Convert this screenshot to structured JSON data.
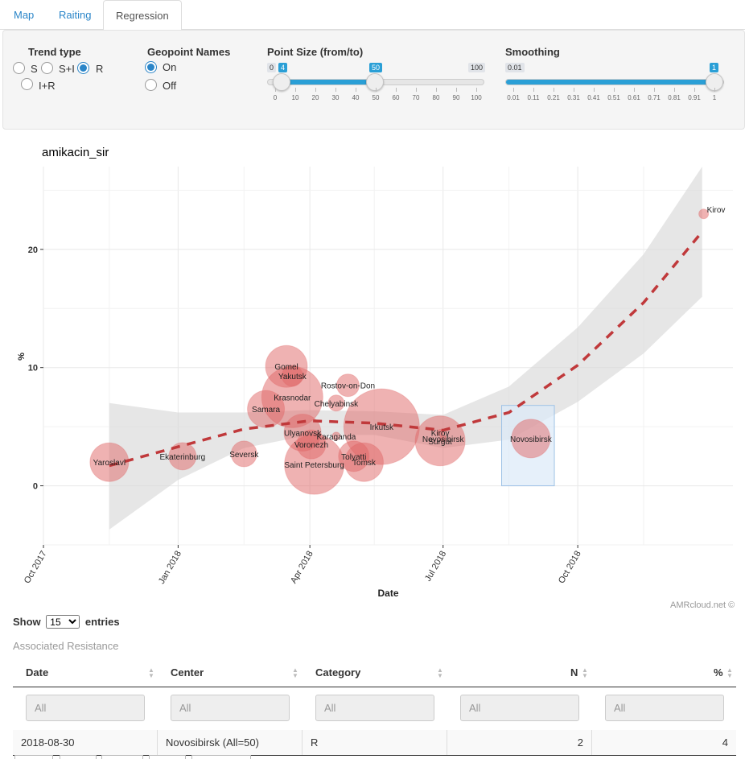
{
  "tabs": [
    {
      "label": "Map",
      "active": false
    },
    {
      "label": "Raiting",
      "active": false
    },
    {
      "label": "Regression",
      "active": true
    }
  ],
  "controls": {
    "trend_type": {
      "title": "Trend type",
      "options": [
        {
          "label": "S",
          "checked": false
        },
        {
          "label": "S+I",
          "checked": false
        },
        {
          "label": "R",
          "checked": true
        },
        {
          "label": "I+R",
          "checked": false
        }
      ]
    },
    "geopoint_names": {
      "title": "Geopoint Names",
      "options": [
        {
          "label": "On",
          "checked": true
        },
        {
          "label": "Off",
          "checked": false
        }
      ]
    },
    "point_size": {
      "title": "Point Size (from/to)",
      "min": 0,
      "max": 100,
      "from": 4,
      "to": 50,
      "min_label": "0",
      "max_label": "100",
      "from_label": "4",
      "to_label": "50",
      "ticks": [
        "0",
        "10",
        "20",
        "30",
        "40",
        "50",
        "60",
        "70",
        "80",
        "90",
        "100"
      ]
    },
    "smoothing": {
      "title": "Smoothing",
      "min": 0.01,
      "max": 1,
      "value": 1,
      "min_label": "0.01",
      "value_label": "1",
      "ticks": [
        "0.01",
        "0.11",
        "0.21",
        "0.31",
        "0.41",
        "0.51",
        "0.61",
        "0.71",
        "0.81",
        "0.91",
        "1"
      ]
    }
  },
  "chart_data": {
    "type": "scatter",
    "title": "amikacin_sir",
    "xlabel": "Date",
    "ylabel": "%",
    "x_ticks": [
      "Oct 2017",
      "Jan 2018",
      "Apr 2018",
      "Jul 2018",
      "Oct 2018"
    ],
    "y_ticks": [
      "0",
      "10",
      "20"
    ],
    "ylim": [
      -5,
      27
    ],
    "grid": true,
    "trend": {
      "color": "#c0393b",
      "style": "dashed",
      "x": [
        "2017-11-15",
        "2018-01-01",
        "2018-02-15",
        "2018-04-01",
        "2018-05-15",
        "2018-07-01",
        "2018-08-15",
        "2018-10-01",
        "2018-11-15",
        "2018-12-25"
      ],
      "y": [
        1.7,
        3.3,
        4.8,
        5.5,
        5.3,
        4.7,
        6.2,
        10.2,
        15.5,
        21.5
      ],
      "ci_upper": [
        7.0,
        6.2,
        6.2,
        6.4,
        6.3,
        6.0,
        8.4,
        13.4,
        19.6,
        27.0
      ],
      "ci_lower": [
        -3.7,
        0.5,
        3.2,
        4.3,
        4.3,
        3.2,
        3.9,
        7.1,
        11.2,
        16.0
      ]
    },
    "points": [
      {
        "name": "Yaroslavl",
        "x": "2017-11-15",
        "y": 2.0,
        "size": 24
      },
      {
        "name": "Ekaterinburg",
        "x": "2018-01-04",
        "y": 2.5,
        "size": 17
      },
      {
        "name": "Seversk",
        "x": "2018-02-15",
        "y": 2.7,
        "size": 16
      },
      {
        "name": "Samara",
        "x": "2018-03-02",
        "y": 6.5,
        "size": 23
      },
      {
        "name": "Gomel",
        "x": "2018-03-16",
        "y": 10.1,
        "size": 26
      },
      {
        "name": "Yakutsk",
        "x": "2018-03-20",
        "y": 9.3,
        "size": 13
      },
      {
        "name": "Krasnodar",
        "x": "2018-03-20",
        "y": 7.5,
        "size": 38
      },
      {
        "name": "Ulyanovsk",
        "x": "2018-03-27",
        "y": 4.5,
        "size": 23
      },
      {
        "name": "Voronezh",
        "x": "2018-04-02",
        "y": 3.5,
        "size": 18
      },
      {
        "name": "Saint Petersburg",
        "x": "2018-04-04",
        "y": 1.8,
        "size": 37
      },
      {
        "name": "Chelyabinsk",
        "x": "2018-04-19",
        "y": 7.0,
        "size": 10
      },
      {
        "name": "Karaganda",
        "x": "2018-04-19",
        "y": 4.2,
        "size": 5
      },
      {
        "name": "Rostov-on-Don",
        "x": "2018-04-27",
        "y": 8.5,
        "size": 14
      },
      {
        "name": "Tolyatti",
        "x": "2018-05-01",
        "y": 2.5,
        "size": 19
      },
      {
        "name": "Tomsk",
        "x": "2018-05-08",
        "y": 2.0,
        "size": 24
      },
      {
        "name": "Irkutsk",
        "x": "2018-05-20",
        "y": 5.0,
        "size": 47
      },
      {
        "name": "Surgut",
        "x": "2018-06-29",
        "y": 3.8,
        "size": 31
      },
      {
        "name": "Kirov",
        "x": "2018-06-29",
        "y": 4.5,
        "size": 4
      },
      {
        "name": "Novosibirsk",
        "x": "2018-07-01",
        "y": 4.0,
        "size": 4
      },
      {
        "name": "Novosibirsk",
        "x": "2018-08-30",
        "y": 4.0,
        "size": 24
      },
      {
        "name": "Kirov",
        "x": "2018-12-26",
        "y": 23.0,
        "size": 6
      }
    ],
    "highlight": {
      "x_from": "2018-08-10",
      "x_to": "2018-09-15",
      "y_from": 0,
      "y_to": 6.8
    }
  },
  "credit": "AMRcloud.net ©",
  "table": {
    "show_label": "Show",
    "entries_label": "entries",
    "page_length": "15",
    "caption": "Associated Resistance",
    "columns": [
      "Date",
      "Center",
      "Category",
      "N",
      "%"
    ],
    "filter_placeholder": "All",
    "rows": [
      [
        "2018-08-30",
        "Novosibirsk (All=50)",
        "R",
        "2",
        "4"
      ]
    ]
  }
}
